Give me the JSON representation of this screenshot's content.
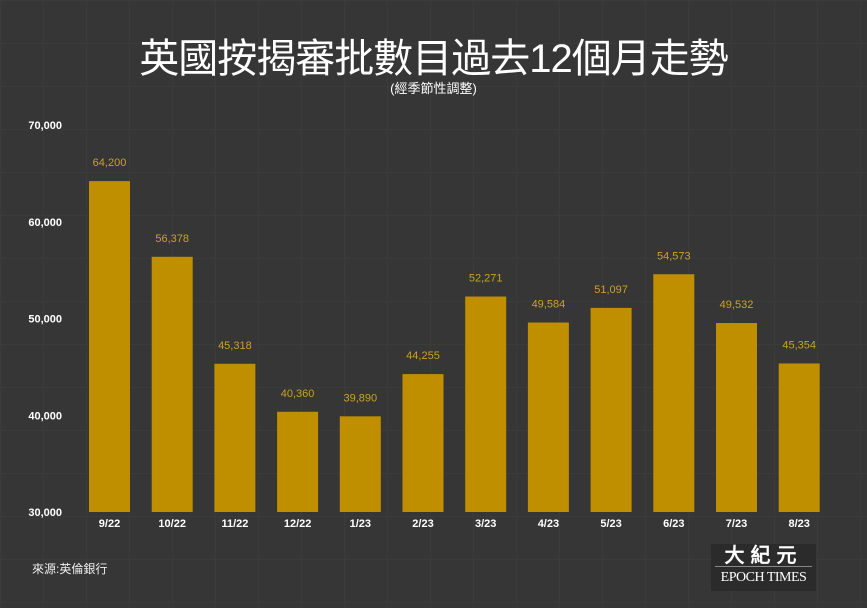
{
  "chart_data": {
    "type": "bar",
    "title": "英國按揭審批數目過去12個月走勢",
    "subtitle": "(經季節性調整)",
    "categories": [
      "9/22",
      "10/22",
      "11/22",
      "12/22",
      "1/23",
      "2/23",
      "3/23",
      "4/23",
      "5/23",
      "6/23",
      "7/23",
      "8/23"
    ],
    "values": [
      64200,
      56378,
      45318,
      40360,
      39890,
      44255,
      52271,
      49584,
      51097,
      54573,
      49532,
      45354
    ],
    "data_labels": [
      "64,200",
      "56,378",
      "45,318",
      "40,360",
      "39,890",
      "44,255",
      "52,271",
      "49,584",
      "51,097",
      "54,573",
      "49,532",
      "45,354"
    ],
    "ylim": [
      30000,
      70000
    ],
    "yticks": [
      30000,
      40000,
      50000,
      60000,
      70000
    ],
    "ytick_labels": [
      "30,000",
      "40,000",
      "50,000",
      "60,000",
      "70,000"
    ],
    "xlabel": "",
    "ylabel": "",
    "bar_color": "#c08f00",
    "label_color": "#c9a227"
  },
  "source": "來源:英倫銀行",
  "logo": {
    "cn": "大紀元",
    "en": "EPOCH TIMES"
  }
}
